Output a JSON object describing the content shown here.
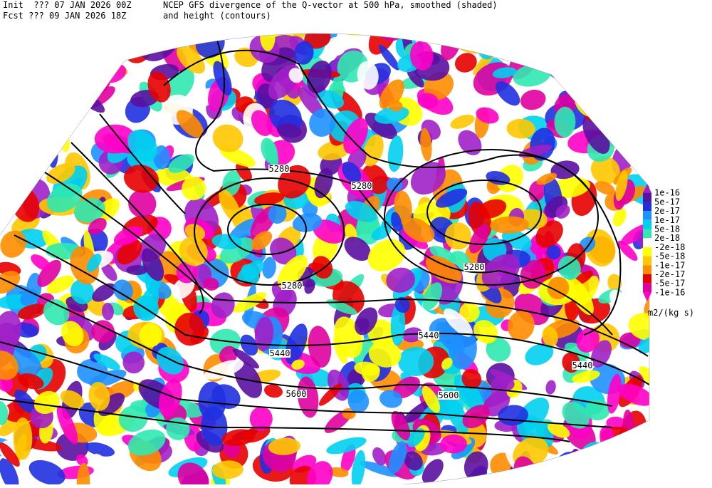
{
  "header": {
    "init": "Init  ??? 07 JAN 2026 00Z",
    "fcst": "Fcst ??? 09 JAN 2026 18Z",
    "title": "NCEP GFS divergence of the Q-vector at 500 hPa, smoothed (shaded)",
    "subtitle": "and height (contours)"
  },
  "contour_labels": [
    "5280",
    "5280",
    "5280",
    "5280",
    "5440",
    "5440",
    "5440",
    "5600",
    "5600"
  ],
  "legend": {
    "labels": [
      "1e-16",
      "5e-17",
      "2e-17",
      "1e-17",
      "5e-18",
      "2e-18",
      "-2e-18",
      "-5e-18",
      "-1e-17",
      "-2e-17",
      "-5e-17",
      "-1e-16"
    ],
    "colors": [
      "#a020c8",
      "#5a10a0",
      "#2030e0",
      "#1e90ff",
      "#00d0f0",
      "#30e8b0",
      "#ffffff",
      "#ffff00",
      "#ffc800",
      "#ff8c00",
      "#e80000",
      "#e000a0",
      "#ff00c8"
    ],
    "unit": "m2/(kg s)"
  }
}
